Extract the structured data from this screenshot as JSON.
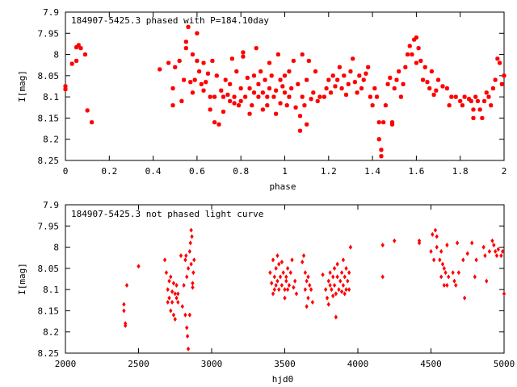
{
  "chart_data": [
    {
      "type": "scatter",
      "title": "184907-5425.3 phased with P=184.10day",
      "xlabel": "phase",
      "ylabel": "I[mag]",
      "xlim": [
        0,
        2
      ],
      "ylim": [
        7.9,
        8.25
      ],
      "y_inverted": true,
      "grid": false,
      "marker": "asterisk",
      "color": "#ff0000",
      "xticks": [
        0,
        0.2,
        0.4,
        0.6,
        0.8,
        1,
        1.2,
        1.4,
        1.6,
        1.8,
        2
      ],
      "xtick_labels": [
        "0",
        "0.2",
        "0.4",
        "0.6",
        "0.8",
        "1",
        "1.2",
        "1.4",
        "1.6",
        "1.8",
        "2"
      ],
      "yticks": [
        7.9,
        7.95,
        8,
        8.05,
        8.1,
        8.15,
        8.2,
        8.25
      ],
      "ytick_labels": [
        "7.9",
        "7.95",
        "8",
        "8.05",
        "8.1",
        "8.15",
        "8.2",
        "8.25"
      ],
      "points": [
        [
          0.0,
          8.075
        ],
        [
          0.0,
          8.082
        ],
        [
          0.03,
          8.022
        ],
        [
          0.05,
          7.983
        ],
        [
          0.06,
          7.978
        ],
        [
          0.07,
          7.985
        ],
        [
          0.05,
          8.015
        ],
        [
          0.09,
          8.0
        ],
        [
          0.1,
          8.132
        ],
        [
          0.12,
          8.16
        ],
        [
          0.43,
          8.035
        ],
        [
          0.47,
          8.02
        ],
        [
          0.49,
          8.08
        ],
        [
          0.49,
          8.12
        ],
        [
          0.5,
          8.03
        ],
        [
          0.52,
          8.015
        ],
        [
          0.53,
          8.11
        ],
        [
          0.54,
          8.06
        ],
        [
          0.55,
          7.985
        ],
        [
          0.55,
          7.97
        ],
        [
          0.56,
          7.935
        ],
        [
          0.57,
          8.065
        ],
        [
          0.58,
          8.0
        ],
        [
          0.58,
          8.09
        ],
        [
          0.59,
          8.06
        ],
        [
          0.6,
          7.95
        ],
        [
          0.6,
          8.015
        ],
        [
          0.61,
          8.04
        ],
        [
          0.62,
          8.07
        ],
        [
          0.63,
          8.02
        ],
        [
          0.63,
          8.085
        ],
        [
          0.64,
          8.065
        ],
        [
          0.65,
          8.045
        ],
        [
          0.66,
          8.1
        ],
        [
          0.66,
          8.13
        ],
        [
          0.67,
          8.015
        ],
        [
          0.68,
          8.1
        ],
        [
          0.68,
          8.16
        ],
        [
          0.69,
          8.05
        ],
        [
          0.7,
          8.165
        ],
        [
          0.71,
          8.085
        ],
        [
          0.72,
          8.1
        ],
        [
          0.72,
          8.135
        ],
        [
          0.73,
          8.06
        ],
        [
          0.74,
          8.095
        ],
        [
          0.75,
          8.07
        ],
        [
          0.75,
          8.11
        ],
        [
          0.76,
          8.01
        ],
        [
          0.77,
          8.1
        ],
        [
          0.77,
          8.115
        ],
        [
          0.78,
          8.04
        ],
        [
          0.79,
          8.12
        ],
        [
          0.8,
          8.08
        ],
        [
          0.8,
          8.11
        ],
        [
          0.81,
          8.005
        ],
        [
          0.81,
          7.995
        ],
        [
          0.82,
          8.1
        ],
        [
          0.83,
          8.055
        ],
        [
          0.84,
          8.08
        ],
        [
          0.84,
          8.14
        ],
        [
          0.85,
          8.12
        ],
        [
          0.86,
          8.09
        ],
        [
          0.86,
          8.05
        ],
        [
          0.87,
          7.985
        ],
        [
          0.88,
          8.1
        ],
        [
          0.88,
          8.07
        ],
        [
          0.89,
          8.04
        ],
        [
          0.9,
          8.13
        ],
        [
          0.9,
          8.09
        ],
        [
          0.91,
          8.06
        ],
        [
          0.92,
          8.1
        ],
        [
          0.92,
          8.12
        ],
        [
          0.93,
          8.02
        ],
        [
          0.93,
          8.08
        ],
        [
          0.94,
          8.05
        ],
        [
          0.95,
          8.1
        ],
        [
          0.96,
          8.085
        ],
        [
          0.96,
          8.14
        ],
        [
          0.97,
          8.0
        ],
        [
          0.98,
          8.06
        ],
        [
          0.98,
          8.115
        ],
        [
          0.99,
          8.075
        ],
        [
          1.0,
          8.09
        ],
        [
          1.0,
          8.05
        ],
        [
          1.01,
          8.12
        ],
        [
          1.02,
          8.04
        ],
        [
          1.02,
          8.1
        ],
        [
          1.03,
          8.08
        ],
        [
          1.04,
          8.015
        ],
        [
          1.05,
          8.125
        ],
        [
          1.06,
          8.07
        ],
        [
          1.07,
          8.145
        ],
        [
          1.07,
          8.18
        ],
        [
          1.08,
          8.0
        ],
        [
          1.08,
          8.1
        ],
        [
          1.09,
          8.12
        ],
        [
          1.1,
          8.165
        ],
        [
          1.1,
          8.06
        ],
        [
          1.11,
          8.015
        ],
        [
          1.12,
          8.105
        ],
        [
          1.13,
          8.09
        ],
        [
          1.14,
          8.04
        ],
        [
          1.15,
          8.11
        ],
        [
          1.16,
          8.1
        ],
        [
          1.18,
          8.1
        ],
        [
          1.19,
          8.08
        ],
        [
          1.2,
          8.06
        ],
        [
          1.21,
          8.09
        ],
        [
          1.22,
          8.05
        ],
        [
          1.23,
          8.075
        ],
        [
          1.24,
          8.06
        ],
        [
          1.25,
          8.03
        ],
        [
          1.26,
          8.08
        ],
        [
          1.27,
          8.05
        ],
        [
          1.28,
          8.095
        ],
        [
          1.29,
          8.07
        ],
        [
          1.3,
          8.04
        ],
        [
          1.31,
          8.01
        ],
        [
          1.32,
          8.065
        ],
        [
          1.33,
          8.09
        ],
        [
          1.34,
          8.05
        ],
        [
          1.35,
          8.08
        ],
        [
          1.36,
          8.06
        ],
        [
          1.37,
          8.045
        ],
        [
          1.38,
          8.03
        ],
        [
          1.39,
          8.1
        ],
        [
          1.4,
          8.12
        ],
        [
          1.41,
          8.08
        ],
        [
          1.42,
          8.1
        ],
        [
          1.43,
          8.16
        ],
        [
          1.43,
          8.2
        ],
        [
          1.44,
          8.225
        ],
        [
          1.44,
          8.24
        ],
        [
          1.45,
          8.16
        ],
        [
          1.46,
          8.12
        ],
        [
          1.47,
          8.07
        ],
        [
          1.48,
          8.055
        ],
        [
          1.49,
          8.16
        ],
        [
          1.49,
          8.165
        ],
        [
          1.5,
          8.08
        ],
        [
          1.51,
          8.06
        ],
        [
          1.52,
          8.04
        ],
        [
          1.53,
          8.1
        ],
        [
          1.54,
          8.07
        ],
        [
          1.55,
          8.03
        ],
        [
          1.56,
          8.0
        ],
        [
          1.57,
          7.98
        ],
        [
          1.58,
          8.0
        ],
        [
          1.59,
          7.965
        ],
        [
          1.6,
          7.96
        ],
        [
          1.6,
          8.02
        ],
        [
          1.61,
          7.985
        ],
        [
          1.62,
          8.015
        ],
        [
          1.63,
          8.06
        ],
        [
          1.64,
          8.03
        ],
        [
          1.65,
          8.065
        ],
        [
          1.66,
          8.08
        ],
        [
          1.67,
          8.04
        ],
        [
          1.68,
          8.095
        ],
        [
          1.69,
          8.085
        ],
        [
          1.7,
          8.06
        ],
        [
          1.72,
          8.075
        ],
        [
          1.74,
          8.08
        ],
        [
          1.75,
          8.12
        ],
        [
          1.76,
          8.1
        ],
        [
          1.78,
          8.1
        ],
        [
          1.8,
          8.11
        ],
        [
          1.81,
          8.12
        ],
        [
          1.82,
          8.1
        ],
        [
          1.84,
          8.105
        ],
        [
          1.85,
          8.11
        ],
        [
          1.86,
          8.13
        ],
        [
          1.86,
          8.15
        ],
        [
          1.87,
          8.1
        ],
        [
          1.88,
          8.11
        ],
        [
          1.89,
          8.13
        ],
        [
          1.9,
          8.15
        ],
        [
          1.91,
          8.11
        ],
        [
          1.92,
          8.09
        ],
        [
          1.93,
          8.1
        ],
        [
          1.94,
          8.12
        ],
        [
          1.95,
          8.08
        ],
        [
          1.96,
          8.06
        ],
        [
          1.97,
          8.01
        ],
        [
          1.98,
          8.02
        ],
        [
          1.99,
          8.07
        ],
        [
          2.0,
          8.05
        ]
      ]
    },
    {
      "type": "scatter",
      "title": "184907-5425.3 not phased light curve",
      "xlabel": "hjd0",
      "ylabel": "I[mag]",
      "xlim": [
        2000,
        5000
      ],
      "ylim": [
        7.9,
        8.25
      ],
      "y_inverted": true,
      "grid": false,
      "marker": "diamond",
      "color": "#ff0000",
      "xticks": [
        2000,
        2500,
        3000,
        3500,
        4000,
        4500,
        5000
      ],
      "xtick_labels": [
        "2000",
        "2500",
        "3000",
        "3500",
        "4000",
        "4500",
        "5000"
      ],
      "yticks": [
        7.9,
        7.95,
        8,
        8.05,
        8.1,
        8.15,
        8.2,
        8.25
      ],
      "ytick_labels": [
        "7.9",
        "7.95",
        "8",
        "8.05",
        "8.1",
        "8.15",
        "8.2",
        "8.25"
      ],
      "points": [
        [
          2400,
          8.135
        ],
        [
          2400,
          8.15
        ],
        [
          2410,
          8.18
        ],
        [
          2410,
          8.185
        ],
        [
          2420,
          8.09
        ],
        [
          2500,
          8.045
        ],
        [
          2680,
          8.03
        ],
        [
          2690,
          8.06
        ],
        [
          2700,
          8.1
        ],
        [
          2700,
          8.13
        ],
        [
          2710,
          8.08
        ],
        [
          2710,
          8.12
        ],
        [
          2720,
          8.15
        ],
        [
          2720,
          8.07
        ],
        [
          2730,
          8.105
        ],
        [
          2730,
          8.13
        ],
        [
          2740,
          8.085
        ],
        [
          2740,
          8.16
        ],
        [
          2750,
          8.11
        ],
        [
          2750,
          8.17
        ],
        [
          2760,
          8.09
        ],
        [
          2760,
          8.12
        ],
        [
          2770,
          8.13
        ],
        [
          2770,
          8.11
        ],
        [
          2790,
          8.02
        ],
        [
          2800,
          8.14
        ],
        [
          2810,
          8.09
        ],
        [
          2820,
          8.03
        ],
        [
          2820,
          8.16
        ],
        [
          2825,
          8.02
        ],
        [
          2830,
          8.07
        ],
        [
          2830,
          8.19
        ],
        [
          2835,
          8.21
        ],
        [
          2840,
          8.24
        ],
        [
          2840,
          8.05
        ],
        [
          2850,
          8.01
        ],
        [
          2850,
          8.16
        ],
        [
          2855,
          7.99
        ],
        [
          2860,
          8.04
        ],
        [
          2860,
          7.96
        ],
        [
          2865,
          7.975
        ],
        [
          2870,
          8.085
        ],
        [
          2870,
          8.095
        ],
        [
          2875,
          8.06
        ],
        [
          2880,
          8.03
        ],
        [
          3400,
          8.06
        ],
        [
          3410,
          8.085
        ],
        [
          3420,
          8.03
        ],
        [
          3420,
          8.11
        ],
        [
          3430,
          8.07
        ],
        [
          3430,
          8.1
        ],
        [
          3440,
          8.05
        ],
        [
          3440,
          8.09
        ],
        [
          3450,
          8.02
        ],
        [
          3450,
          8.08
        ],
        [
          3460,
          8.1
        ],
        [
          3460,
          8.04
        ],
        [
          3470,
          8.07
        ],
        [
          3480,
          8.09
        ],
        [
          3480,
          8.035
        ],
        [
          3490,
          8.06
        ],
        [
          3500,
          8.1
        ],
        [
          3500,
          8.12
        ],
        [
          3510,
          8.07
        ],
        [
          3510,
          8.08
        ],
        [
          3520,
          8.05
        ],
        [
          3520,
          8.1
        ],
        [
          3530,
          8.09
        ],
        [
          3540,
          8.06
        ],
        [
          3550,
          8.03
        ],
        [
          3560,
          8.095
        ],
        [
          3570,
          8.08
        ],
        [
          3580,
          8.11
        ],
        [
          3620,
          8.035
        ],
        [
          3630,
          8.02
        ],
        [
          3640,
          8.06
        ],
        [
          3640,
          8.1
        ],
        [
          3650,
          8.08
        ],
        [
          3650,
          8.14
        ],
        [
          3660,
          8.07
        ],
        [
          3660,
          8.12
        ],
        [
          3670,
          8.09
        ],
        [
          3680,
          8.1
        ],
        [
          3690,
          8.13
        ],
        [
          3760,
          8.065
        ],
        [
          3780,
          8.1
        ],
        [
          3790,
          8.12
        ],
        [
          3800,
          8.08
        ],
        [
          3800,
          8.135
        ],
        [
          3810,
          8.09
        ],
        [
          3810,
          8.06
        ],
        [
          3820,
          8.1
        ],
        [
          3830,
          8.07
        ],
        [
          3830,
          8.115
        ],
        [
          3840,
          8.05
        ],
        [
          3840,
          8.09
        ],
        [
          3850,
          8.11
        ],
        [
          3850,
          8.165
        ],
        [
          3860,
          8.07
        ],
        [
          3860,
          8.04
        ],
        [
          3870,
          8.1
        ],
        [
          3880,
          8.08
        ],
        [
          3890,
          8.06
        ],
        [
          3890,
          8.105
        ],
        [
          3900,
          8.09
        ],
        [
          3900,
          8.03
        ],
        [
          3910,
          8.11
        ],
        [
          3910,
          8.07
        ],
        [
          3920,
          8.05
        ],
        [
          3920,
          8.1
        ],
        [
          3930,
          8.08
        ],
        [
          3940,
          8.06
        ],
        [
          3940,
          8.1
        ],
        [
          3950,
          8.0
        ],
        [
          4170,
          7.995
        ],
        [
          4170,
          8.07
        ],
        [
          4250,
          7.985
        ],
        [
          4420,
          7.985
        ],
        [
          4420,
          7.99
        ],
        [
          4500,
          8.01
        ],
        [
          4510,
          7.97
        ],
        [
          4520,
          8.03
        ],
        [
          4530,
          7.96
        ],
        [
          4540,
          8.0
        ],
        [
          4540,
          7.975
        ],
        [
          4560,
          8.03
        ],
        [
          4570,
          8.07
        ],
        [
          4570,
          8.01
        ],
        [
          4580,
          8.04
        ],
        [
          4590,
          8.05
        ],
        [
          4590,
          8.09
        ],
        [
          4600,
          8.06
        ],
        [
          4610,
          8.09
        ],
        [
          4610,
          7.995
        ],
        [
          4620,
          8.07
        ],
        [
          4650,
          8.06
        ],
        [
          4660,
          8.08
        ],
        [
          4670,
          8.09
        ],
        [
          4680,
          7.99
        ],
        [
          4690,
          8.06
        ],
        [
          4720,
          8.03
        ],
        [
          4730,
          8.12
        ],
        [
          4750,
          8.015
        ],
        [
          4780,
          7.99
        ],
        [
          4800,
          8.07
        ],
        [
          4810,
          8.03
        ],
        [
          4860,
          8.0
        ],
        [
          4870,
          8.02
        ],
        [
          4880,
          8.08
        ],
        [
          4900,
          8.01
        ],
        [
          4920,
          7.985
        ],
        [
          4930,
          7.995
        ],
        [
          4940,
          8.01
        ],
        [
          4950,
          8.02
        ],
        [
          4960,
          8.005
        ],
        [
          4980,
          8.02
        ],
        [
          4990,
          8.01
        ],
        [
          5000,
          8.11
        ]
      ]
    }
  ]
}
